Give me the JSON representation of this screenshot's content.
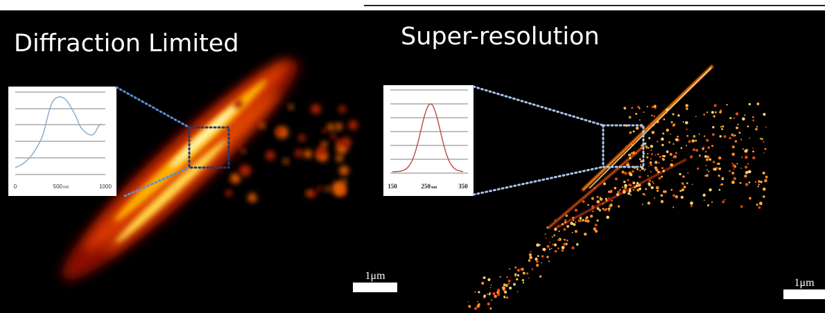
{
  "panels": [
    {
      "title": "Diffraction Limited",
      "inset": {
        "tick_labels": [
          "0",
          "500",
          "1000"
        ],
        "unit": "nm"
      },
      "scale_bar": "1μm"
    },
    {
      "title": "Super-resolution",
      "inset": {
        "tick_labels": [
          "150",
          "250",
          "350"
        ],
        "unit": "nm"
      },
      "scale_bar": "1μm"
    }
  ]
}
